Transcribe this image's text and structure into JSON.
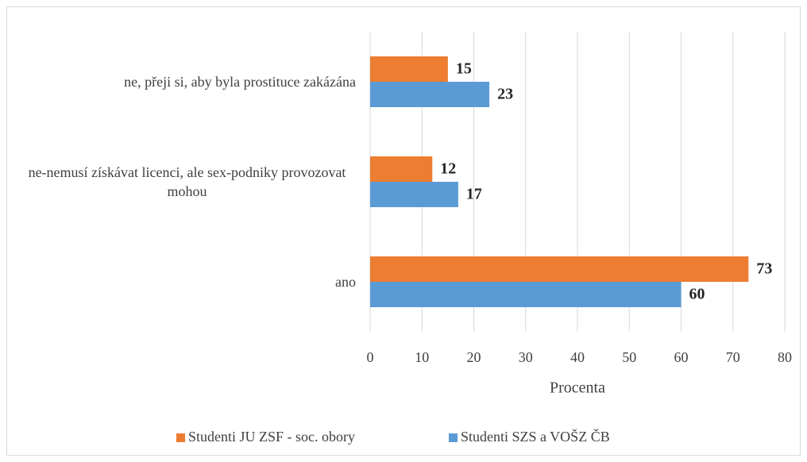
{
  "chart_data": {
    "type": "hbar",
    "categories": [
      "ne, přeji si, aby byla prostituce zakázána",
      "ne-nemusí získávat licenci, ale sex-podniky provozovat mohou",
      "ano"
    ],
    "series": [
      {
        "name": "Studenti JU ZSF - soc. obory",
        "color": "#ed7d31",
        "values": [
          15,
          12,
          73
        ]
      },
      {
        "name": "Studenti SZS a VOŠZ ČB",
        "color": "#5b9bd5",
        "values": [
          23,
          17,
          60
        ]
      }
    ],
    "xlabel": "Procenta",
    "xlim": [
      0,
      80
    ],
    "xticks": [
      0,
      10,
      20,
      30,
      40,
      50,
      60,
      70,
      80
    ],
    "grid": true,
    "legend": "bottom"
  }
}
